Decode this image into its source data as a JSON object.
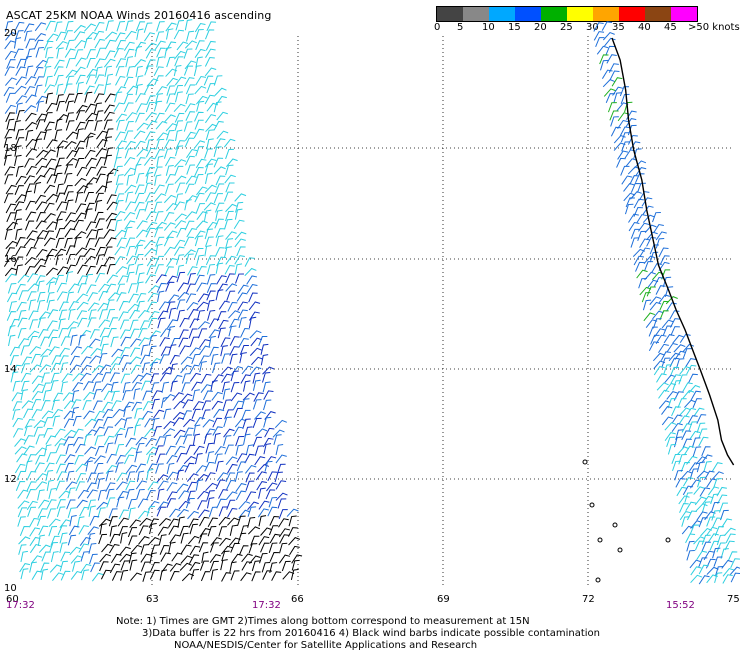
{
  "title": "ASCAT 25KM NOAA Winds 20160416 ascending",
  "legend": {
    "labels": [
      "0",
      "5",
      "10",
      "15",
      "20",
      "25",
      "30",
      "35",
      "40",
      "45",
      ">50 knots"
    ],
    "colors": [
      "#444444",
      "#888888",
      "#00a8ff",
      "#0050ff",
      "#00b000",
      "#ffff00",
      "#ffa500",
      "#ff0000",
      "#8b4513",
      "#ff00ff",
      "#800080"
    ]
  },
  "map": {
    "lon_ticks": [
      "60",
      "63",
      "66",
      "69",
      "72",
      "75"
    ],
    "lat_ticks": [
      "20",
      "18",
      "16",
      "14",
      "12",
      "10"
    ],
    "lon_range": [
      60,
      75
    ],
    "lat_range": [
      10,
      20
    ],
    "grid": true
  },
  "times": [
    "17:32",
    "17:32",
    "15:52"
  ],
  "notes": [
    "Note: 1) Times are GMT 2)Times along bottom correspond to measurement at 15N",
    "3)Data buffer is 22 hrs from 20160416 4) Black wind barbs indicate possible contamination",
    "NOAA/NESDIS/Center for Satellite Applications and Research"
  ],
  "barb_colors": {
    "calm": "#000000",
    "light": "#2ecfe0",
    "moderate": "#1e6fd9",
    "strong": "#1030c0",
    "fresh": "#20b020"
  },
  "coast_color": "#000000"
}
